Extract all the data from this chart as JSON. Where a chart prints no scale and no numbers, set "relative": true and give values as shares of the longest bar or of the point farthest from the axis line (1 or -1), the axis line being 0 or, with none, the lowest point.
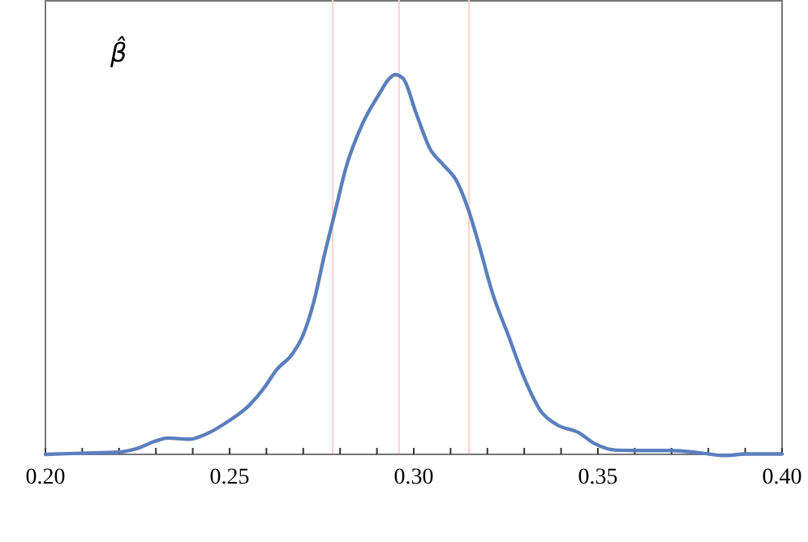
{
  "chart_data": {
    "type": "line",
    "relative": true,
    "annotations": [
      "β̂"
    ],
    "x": [
      0.2,
      0.2097,
      0.22,
      0.2244,
      0.2302,
      0.2332,
      0.239,
      0.2435,
      0.2493,
      0.2552,
      0.2596,
      0.2626,
      0.267,
      0.2699,
      0.2728,
      0.2758,
      0.2787,
      0.2816,
      0.286,
      0.2905,
      0.2934,
      0.2949,
      0.2971,
      0.3007,
      0.3044,
      0.3081,
      0.3117,
      0.3147,
      0.3176,
      0.3213,
      0.3257,
      0.3301,
      0.3345,
      0.3389,
      0.3448,
      0.3492,
      0.3551,
      0.3609,
      0.3697,
      0.3786,
      0.3844,
      0.3903,
      0.4
    ],
    "series": [
      {
        "color": "#5b7fbd",
        "values": [
          0,
          0.003,
          0.006,
          0.014,
          0.036,
          0.043,
          0.04,
          0.053,
          0.085,
          0.128,
          0.178,
          0.221,
          0.264,
          0.313,
          0.399,
          0.527,
          0.641,
          0.755,
          0.869,
          0.947,
          0.99,
          1,
          0.99,
          0.897,
          0.805,
          0.762,
          0.719,
          0.648,
          0.556,
          0.427,
          0.313,
          0.199,
          0.114,
          0.078,
          0.057,
          0.028,
          0.011,
          0.01,
          0.01,
          0.003,
          -0.003,
          0.001,
          0.001
        ]
      }
    ],
    "xlim": [
      0.2,
      0.4
    ],
    "xticks": [
      {
        "value": 0.2,
        "label": "0.20"
      },
      {
        "value": 0.21,
        "label": null
      },
      {
        "value": 0.22,
        "label": null
      },
      {
        "value": 0.23,
        "label": null
      },
      {
        "value": 0.24,
        "label": null
      },
      {
        "value": 0.25,
        "label": "0.25"
      },
      {
        "value": 0.26,
        "label": null
      },
      {
        "value": 0.27,
        "label": null
      },
      {
        "value": 0.28,
        "label": null
      },
      {
        "value": 0.29,
        "label": null
      },
      {
        "value": 0.3,
        "label": "0.30"
      },
      {
        "value": 0.31,
        "label": null
      },
      {
        "value": 0.32,
        "label": null
      },
      {
        "value": 0.33,
        "label": null
      },
      {
        "value": 0.34,
        "label": null
      },
      {
        "value": 0.35,
        "label": "0.35"
      },
      {
        "value": 0.36,
        "label": null
      },
      {
        "value": 0.37,
        "label": null
      },
      {
        "value": 0.38,
        "label": null
      },
      {
        "value": 0.39,
        "label": null
      },
      {
        "value": 0.4,
        "label": "0.40"
      }
    ],
    "ref_lines": [
      {
        "axis": "x",
        "value": 0.278,
        "color": "#ffd0d0"
      },
      {
        "axis": "x",
        "value": 0.296,
        "color": "#ffd0d0"
      },
      {
        "axis": "x",
        "value": 0.315,
        "color": "#ffd0d0"
      }
    ],
    "grid": false,
    "marker": "none",
    "line_style": "solid"
  }
}
